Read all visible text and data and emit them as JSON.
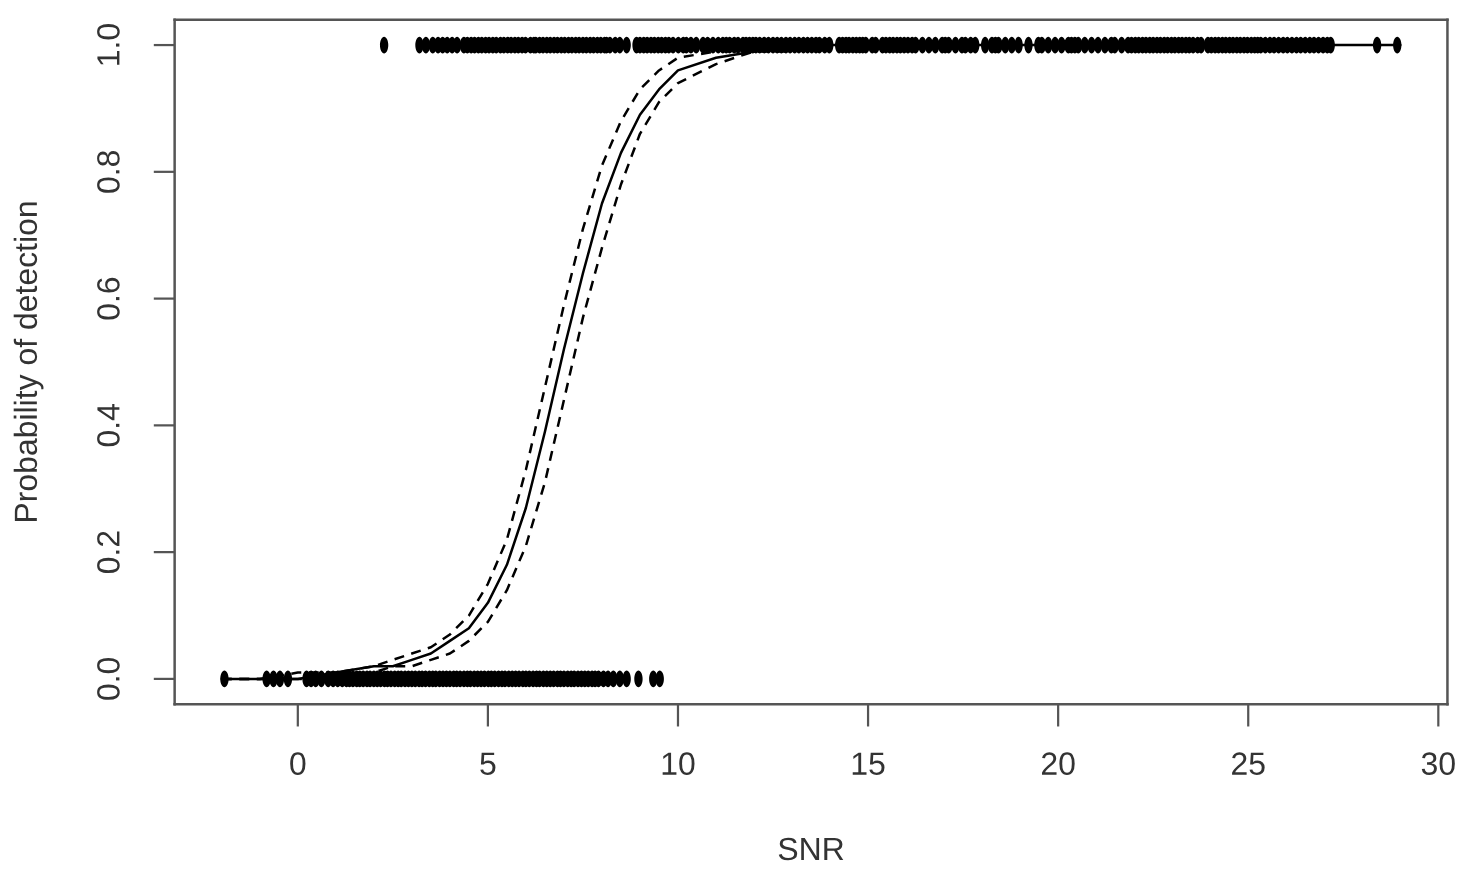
{
  "chart_data": {
    "type": "scatter",
    "xlabel": "SNR",
    "ylabel": "Probability of detection",
    "xlim": [
      -3.24,
      30.24
    ],
    "ylim": [
      -0.04,
      1.04
    ],
    "xticks": [
      0,
      5,
      10,
      15,
      20,
      25,
      30
    ],
    "yticks": [
      {
        "value": 0,
        "label": "0.0"
      },
      {
        "value": 0.2,
        "label": "0.2"
      },
      {
        "value": 0.4,
        "label": "0.4"
      },
      {
        "value": 0.6,
        "label": "0.6"
      },
      {
        "value": 0.8,
        "label": "0.8"
      },
      {
        "value": 1,
        "label": "1.0"
      }
    ],
    "series": [
      {
        "color": "#000000",
        "x": [
          -1.93,
          -0.82,
          -0.64,
          -0.47,
          -0.26,
          0.23,
          0.35,
          0.47,
          0.62,
          0.8,
          0.93,
          1.05,
          1.17,
          1.28,
          1.36,
          1.45,
          1.55,
          1.63,
          1.72,
          1.82,
          1.9,
          2.0,
          2.09,
          2.18,
          2.28,
          2.36,
          2.45,
          2.55,
          2.64,
          2.72,
          2.82,
          2.91,
          3.0,
          3.09,
          3.19,
          3.27,
          3.36,
          3.46,
          3.55,
          3.63,
          3.73,
          3.82,
          3.91,
          4.0,
          4.1,
          4.18,
          4.27,
          4.37,
          4.46,
          4.54,
          4.64,
          4.73,
          4.82,
          4.91,
          5.01,
          5.09,
          5.18,
          5.28,
          5.37,
          5.45,
          5.55,
          5.64,
          5.73,
          5.82,
          5.92,
          6.0,
          6.09,
          6.19,
          6.28,
          6.36,
          6.46,
          6.55,
          6.64,
          6.73,
          6.83,
          6.91,
          7.0,
          7.1,
          7.19,
          7.27,
          7.37,
          7.46,
          7.55,
          7.64,
          7.74,
          7.82,
          7.91,
          8.04,
          8.16,
          8.3,
          8.47,
          8.65,
          8.96,
          9.35,
          9.52
        ],
        "values": [
          0,
          0,
          0,
          0,
          0,
          0,
          0,
          0,
          0,
          0,
          0,
          0,
          0,
          0,
          0,
          0,
          0,
          0,
          0,
          0,
          0,
          0,
          0,
          0,
          0,
          0,
          0,
          0,
          0,
          0,
          0,
          0,
          0,
          0,
          0,
          0,
          0,
          0,
          0,
          0,
          0,
          0,
          0,
          0,
          0,
          0,
          0,
          0,
          0,
          0,
          0,
          0,
          0,
          0,
          0,
          0,
          0,
          0,
          0,
          0,
          0,
          0,
          0,
          0,
          0,
          0,
          0,
          0,
          0,
          0,
          0,
          0,
          0,
          0,
          0,
          0,
          0,
          0,
          0,
          0,
          0,
          0,
          0,
          0,
          0,
          0,
          0,
          0,
          0,
          0,
          0,
          0,
          0,
          0,
          0
        ]
      },
      {
        "color": "#000000",
        "x": [
          2.27,
          3.2,
          3.37,
          3.55,
          3.69,
          3.81,
          3.93,
          4.06,
          4.19,
          4.37,
          4.46,
          4.56,
          4.65,
          4.75,
          4.84,
          4.94,
          5.03,
          5.13,
          5.22,
          5.33,
          5.42,
          5.52,
          5.61,
          5.71,
          5.8,
          5.9,
          5.99,
          6.12,
          6.21,
          6.26,
          6.36,
          6.45,
          6.55,
          6.64,
          6.74,
          6.83,
          6.93,
          7.02,
          7.12,
          7.21,
          7.31,
          7.4,
          7.5,
          7.59,
          7.69,
          7.78,
          7.88,
          7.97,
          8.07,
          8.12,
          8.21,
          8.35,
          8.47,
          8.65,
          8.91,
          9.0,
          9.1,
          9.19,
          9.29,
          9.38,
          9.48,
          9.57,
          9.67,
          9.76,
          9.87,
          10.01,
          10.14,
          10.22,
          10.34,
          10.48,
          10.66,
          10.78,
          10.92,
          11.06,
          11.18,
          11.27,
          11.36,
          11.48,
          11.58,
          11.71,
          11.79,
          11.88,
          11.97,
          12.05,
          12.15,
          12.27,
          12.38,
          12.5,
          12.61,
          12.72,
          12.84,
          12.95,
          13.07,
          13.18,
          13.3,
          13.41,
          13.52,
          13.63,
          13.72,
          13.86,
          13.98,
          14.24,
          14.33,
          14.42,
          14.5,
          14.6,
          14.69,
          14.78,
          14.86,
          14.94,
          15.11,
          15.2,
          15.38,
          15.47,
          15.57,
          15.66,
          15.76,
          15.85,
          15.95,
          16.05,
          16.16,
          16.25,
          16.43,
          16.6,
          16.77,
          16.95,
          17.03,
          17.12,
          17.3,
          17.47,
          17.56,
          17.7,
          17.82,
          18.08,
          18.26,
          18.35,
          18.43,
          18.61,
          18.78,
          18.96,
          19.22,
          19.48,
          19.57,
          19.74,
          19.92,
          20.09,
          20.27,
          20.35,
          20.44,
          20.53,
          20.7,
          20.88,
          21.05,
          21.23,
          21.4,
          21.49,
          21.67,
          21.84,
          21.93,
          22.03,
          22.12,
          22.22,
          22.31,
          22.41,
          22.5,
          22.6,
          22.69,
          22.79,
          22.88,
          22.98,
          23.07,
          23.17,
          23.26,
          23.36,
          23.45,
          23.55,
          23.67,
          23.76,
          23.94,
          24.03,
          24.13,
          24.22,
          24.32,
          24.41,
          24.51,
          24.6,
          24.7,
          24.79,
          24.89,
          24.98,
          25.08,
          25.17,
          25.25,
          25.33,
          25.45,
          25.57,
          25.68,
          25.8,
          25.92,
          26.03,
          26.15,
          26.27,
          26.38,
          26.5,
          26.62,
          26.73,
          26.85,
          26.97,
          27.08,
          27.17,
          28.39,
          28.92
        ],
        "values": [
          1,
          1,
          1,
          1,
          1,
          1,
          1,
          1,
          1,
          1,
          1,
          1,
          1,
          1,
          1,
          1,
          1,
          1,
          1,
          1,
          1,
          1,
          1,
          1,
          1,
          1,
          1,
          1,
          1,
          1,
          1,
          1,
          1,
          1,
          1,
          1,
          1,
          1,
          1,
          1,
          1,
          1,
          1,
          1,
          1,
          1,
          1,
          1,
          1,
          1,
          1,
          1,
          1,
          1,
          1,
          1,
          1,
          1,
          1,
          1,
          1,
          1,
          1,
          1,
          1,
          1,
          1,
          1,
          1,
          1,
          1,
          1,
          1,
          1,
          1,
          1,
          1,
          1,
          1,
          1,
          1,
          1,
          1,
          1,
          1,
          1,
          1,
          1,
          1,
          1,
          1,
          1,
          1,
          1,
          1,
          1,
          1,
          1,
          1,
          1,
          1,
          1,
          1,
          1,
          1,
          1,
          1,
          1,
          1,
          1,
          1,
          1,
          1,
          1,
          1,
          1,
          1,
          1,
          1,
          1,
          1,
          1,
          1,
          1,
          1,
          1,
          1,
          1,
          1,
          1,
          1,
          1,
          1,
          1,
          1,
          1,
          1,
          1,
          1,
          1,
          1,
          1,
          1,
          1,
          1,
          1,
          1,
          1,
          1,
          1,
          1,
          1,
          1,
          1,
          1,
          1,
          1,
          1,
          1,
          1,
          1,
          1,
          1,
          1,
          1,
          1,
          1,
          1,
          1,
          1,
          1,
          1,
          1,
          1,
          1,
          1,
          1,
          1,
          1,
          1,
          1,
          1,
          1,
          1,
          1,
          1,
          1,
          1,
          1,
          1,
          1,
          1,
          1,
          1,
          1,
          1,
          1,
          1,
          1,
          1,
          1,
          1,
          1,
          1,
          1,
          1,
          1,
          1,
          1,
          1,
          1,
          1
        ]
      },
      {
        "type": "line",
        "color": "#000000",
        "line_style": "solid",
        "x": [
          -2,
          -1,
          0,
          1,
          2,
          2.5,
          3,
          3.5,
          4,
          4.5,
          5,
          5.5,
          6,
          6.5,
          7,
          7.5,
          8,
          8.5,
          9,
          9.5,
          10,
          11,
          12,
          13,
          14,
          16,
          20,
          25,
          29
        ],
        "values": [
          0.0,
          0.0,
          0.0,
          0.01,
          0.02,
          0.02,
          0.03,
          0.04,
          0.06,
          0.08,
          0.12,
          0.18,
          0.27,
          0.39,
          0.52,
          0.64,
          0.75,
          0.83,
          0.89,
          0.93,
          0.96,
          0.98,
          0.99,
          1.0,
          1.0,
          1.0,
          1.0,
          1.0,
          1.0
        ]
      },
      {
        "type": "line",
        "color": "#000000",
        "line_style": "dashed",
        "x": [
          -2,
          -1,
          0,
          1,
          2,
          2.5,
          3,
          3.5,
          4,
          4.5,
          5,
          5.5,
          6,
          6.5,
          7,
          7.5,
          8,
          8.5,
          9,
          9.5,
          10,
          11,
          12
        ],
        "values": [
          0.0,
          0.0,
          0.01,
          0.01,
          0.02,
          0.03,
          0.04,
          0.05,
          0.07,
          0.1,
          0.15,
          0.22,
          0.33,
          0.46,
          0.59,
          0.71,
          0.81,
          0.88,
          0.93,
          0.96,
          0.98,
          0.99,
          1.0
        ]
      },
      {
        "type": "line",
        "color": "#000000",
        "line_style": "dashed",
        "x": [
          -2,
          -1,
          0,
          1,
          2,
          2.5,
          3,
          3.5,
          4,
          4.5,
          5,
          5.5,
          6,
          6.5,
          7,
          7.5,
          8,
          8.5,
          9,
          9.5,
          10,
          11,
          12,
          13,
          14
        ],
        "values": [
          0.0,
          0.0,
          0.0,
          0.0,
          0.01,
          0.02,
          0.02,
          0.03,
          0.04,
          0.06,
          0.09,
          0.14,
          0.21,
          0.31,
          0.44,
          0.57,
          0.68,
          0.78,
          0.86,
          0.91,
          0.94,
          0.97,
          0.99,
          0.99,
          1.0
        ]
      }
    ]
  }
}
